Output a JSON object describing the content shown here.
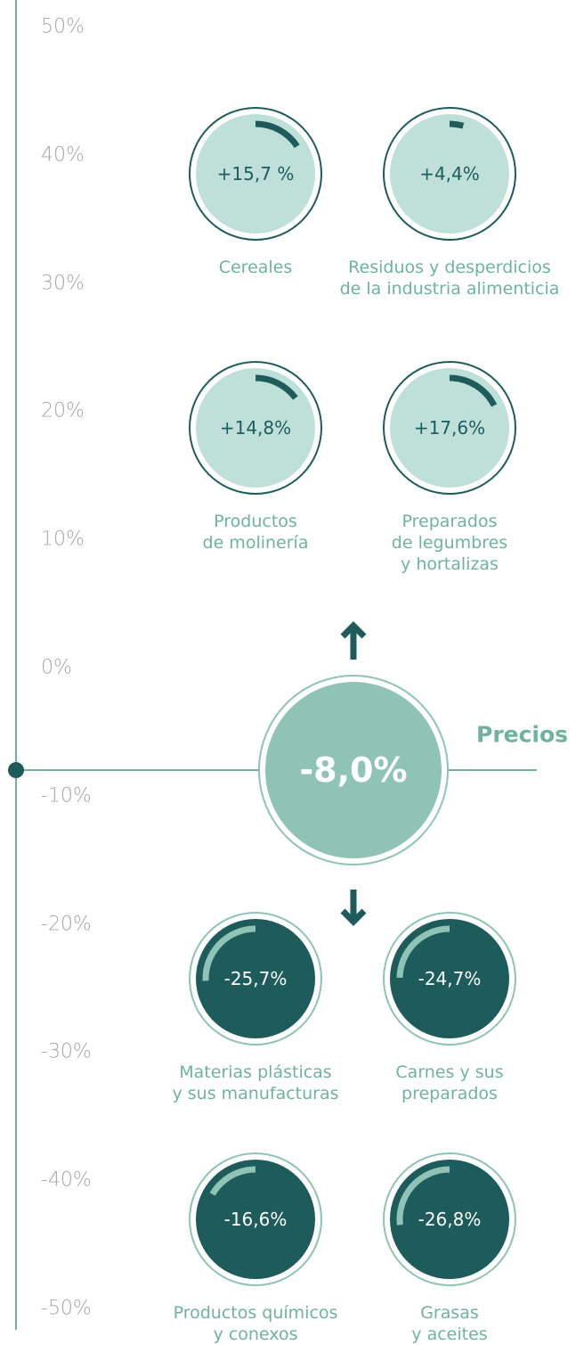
{
  "axis": {
    "ylim": [
      -50,
      50
    ],
    "ticks": [
      {
        "value": 50,
        "label": "50%"
      },
      {
        "value": 40,
        "label": "40%"
      },
      {
        "value": 30,
        "label": "30%"
      },
      {
        "value": 20,
        "label": "20%"
      },
      {
        "value": 10,
        "label": "10%"
      },
      {
        "value": 0,
        "label": "0%"
      },
      {
        "value": -10,
        "label": "-10%"
      },
      {
        "value": -20,
        "label": "-20%"
      },
      {
        "value": -30,
        "label": "-30%"
      },
      {
        "value": -40,
        "label": "-40%"
      },
      {
        "value": -50,
        "label": "-50%"
      }
    ]
  },
  "center": {
    "label": "Precios",
    "value": -8.0,
    "value_label": "-8,0%"
  },
  "items": [
    {
      "label": "Cereales",
      "value": 15.7,
      "value_label": "+15,7 %"
    },
    {
      "label": "Residuos y desperdicios\nde la industria alimenticia",
      "value": 4.4,
      "value_label": "+4,4%"
    },
    {
      "label": "Productos\nde molinería",
      "value": 14.8,
      "value_label": "+14,8%"
    },
    {
      "label": "Preparados\nde legumbres\ny hortalizas",
      "value": 17.6,
      "value_label": "+17,6%"
    },
    {
      "label": "Materias plásticas\ny sus manufacturas",
      "value": -25.7,
      "value_label": "-25,7%"
    },
    {
      "label": "Carnes y sus\npreparados",
      "value": -24.7,
      "value_label": "-24,7%"
    },
    {
      "label": "Productos químicos\ny conexos",
      "value": -16.6,
      "value_label": "-16,6%"
    },
    {
      "label": "Grasas\ny aceites",
      "value": -26.8,
      "value_label": "-26,8%"
    }
  ]
}
